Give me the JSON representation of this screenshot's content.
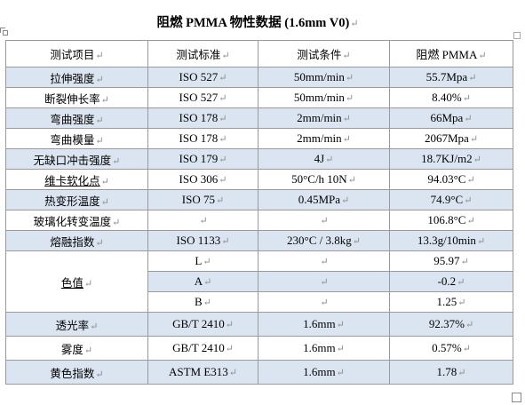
{
  "document": {
    "title": "阻燃 PMMA 物性数据 (1.6mm V0)",
    "title_mark": "↵"
  },
  "table": {
    "mark": "↵",
    "header": [
      "测试项目",
      "测试标准",
      "测试条件",
      "阻燃 PMMA"
    ],
    "rows": [
      {
        "item": "拉伸强度",
        "standard": "ISO 527",
        "condition": "50mm/min",
        "value": "55.7Mpa"
      },
      {
        "item": "断裂伸长率",
        "standard": "ISO 527",
        "condition": "50mm/min",
        "value": "8.40%"
      },
      {
        "item": "弯曲强度",
        "standard": "ISO 178",
        "condition": "2mm/min",
        "value": "66Mpa"
      },
      {
        "item": "弯曲模量",
        "standard": "ISO 178",
        "condition": "2mm/min",
        "value": "2067Mpa"
      },
      {
        "item": "无缺口冲击强度",
        "standard": "ISO 179",
        "condition": "4J",
        "value": "18.7KJ/m2"
      },
      {
        "item": "维卡软化点",
        "standard": "ISO 306",
        "condition": "50°C/h 10N",
        "value": "94.03°C"
      },
      {
        "item": "热变形温度",
        "standard": "ISO 75",
        "condition": "0.45MPa",
        "value": "74.9°C"
      },
      {
        "item": "玻璃化转变温度",
        "standard": "",
        "condition": "",
        "value": "106.8°C"
      },
      {
        "item": "熔融指数",
        "standard": "ISO 1133",
        "condition": "230°C / 3.8kg",
        "value": "13.3g/10min"
      }
    ],
    "color": {
      "item": "色值",
      "sub": [
        {
          "label": "L",
          "condition": "",
          "value": "95.97"
        },
        {
          "label": "A",
          "condition": "",
          "value": "-0.2"
        },
        {
          "label": "B",
          "condition": "",
          "value": "1.25"
        }
      ]
    },
    "tail_rows": [
      {
        "item": "透光率",
        "standard": "GB/T 2410",
        "condition": "1.6mm",
        "value": "92.37%"
      },
      {
        "item": "雾度",
        "standard": "GB/T 2410",
        "condition": "1.6mm",
        "value": "0.57%"
      },
      {
        "item": "黄色指数",
        "standard": "ASTM E313",
        "condition": "1.6mm",
        "value": "1.78"
      }
    ]
  },
  "colors": {
    "band": "#dbe5f1",
    "border": "#9a9a9a"
  }
}
